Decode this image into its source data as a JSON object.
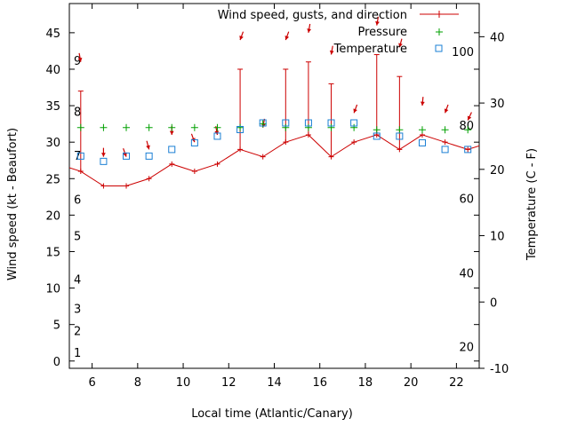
{
  "chart_data": {
    "type": "line",
    "title": "",
    "xlabel": "Local time (Atlantic/Canary)",
    "ylabel": "Wind speed (kt - Beaufort)",
    "y2label": "Temperature (C - F)",
    "xlim": [
      5,
      23
    ],
    "ylim": [
      -1,
      49
    ],
    "y2lim": [
      -10,
      45
    ],
    "xticks": [
      6,
      8,
      10,
      12,
      14,
      16,
      18,
      20,
      22
    ],
    "yticks": [
      0,
      5,
      10,
      15,
      20,
      25,
      30,
      35,
      40,
      45
    ],
    "y2ticks": [
      -10,
      0,
      10,
      20,
      30,
      40
    ],
    "beaufort_labels": [
      {
        "label": "1",
        "y": 1.2
      },
      {
        "label": "2",
        "y": 4.2
      },
      {
        "label": "3",
        "y": 7.2
      },
      {
        "label": "4",
        "y": 11.2
      },
      {
        "label": "5",
        "y": 17.2
      },
      {
        "label": "6",
        "y": 22.2
      },
      {
        "label": "7",
        "y": 28.2
      },
      {
        "label": "8",
        "y": 34.2
      },
      {
        "label": "9",
        "y": 41.2
      }
    ],
    "fahrenheit_labels": [
      {
        "label": "20",
        "y": -6.7
      },
      {
        "label": "40",
        "y": 4.4
      },
      {
        "label": "60",
        "y": 15.6
      },
      {
        "label": "80",
        "y": 26.7
      },
      {
        "label": "100",
        "y": 37.8
      }
    ],
    "legend": [
      "Wind speed, gusts, and direction",
      "Pressure",
      "Temperature"
    ],
    "legend_position": "top-right",
    "colors": {
      "wind": "#cc0000",
      "pressure": "#00a000",
      "temperature": "#1a7fd4",
      "direction": "#cc0000"
    },
    "wind": {
      "x": [
        5,
        5.5,
        6.5,
        7.5,
        8.5,
        9.5,
        10.5,
        11.5,
        12.5,
        13.5,
        14.5,
        15.5,
        16.5,
        17.5,
        18.5,
        19.5,
        20.5,
        21.5,
        22.5,
        23
      ],
      "y": [
        26.5,
        26,
        24,
        24,
        25,
        27,
        26,
        27,
        29,
        28,
        30,
        31,
        28,
        30,
        31,
        29,
        31,
        30,
        29,
        29.5
      ]
    },
    "gusts": {
      "x": [
        5.5,
        12.5,
        14.5,
        15.5,
        16.5,
        18.5,
        19.5
      ],
      "low": [
        26,
        29,
        30,
        31,
        28,
        31,
        29
      ],
      "high": [
        37,
        40,
        40,
        41,
        38,
        42,
        39
      ]
    },
    "direction_arrows": [
      {
        "x": 5.5,
        "y": 41,
        "angle": 190
      },
      {
        "x": 6.5,
        "y": 28,
        "angle": 180
      },
      {
        "x": 7.5,
        "y": 28,
        "angle": 200
      },
      {
        "x": 8.5,
        "y": 29,
        "angle": 195
      },
      {
        "x": 9.5,
        "y": 31,
        "angle": 180
      },
      {
        "x": 10.5,
        "y": 30,
        "angle": 200
      },
      {
        "x": 11.5,
        "y": 31,
        "angle": 190
      },
      {
        "x": 12.5,
        "y": 44,
        "angle": 160
      },
      {
        "x": 13.5,
        "y": 32,
        "angle": 170
      },
      {
        "x": 14.5,
        "y": 44,
        "angle": 160
      },
      {
        "x": 15.5,
        "y": 45,
        "angle": 170
      },
      {
        "x": 16.5,
        "y": 42,
        "angle": 170
      },
      {
        "x": 17.5,
        "y": 34,
        "angle": 160
      },
      {
        "x": 18.5,
        "y": 46,
        "angle": 170
      },
      {
        "x": 19.5,
        "y": 43,
        "angle": 165
      },
      {
        "x": 20.5,
        "y": 35,
        "angle": 175
      },
      {
        "x": 21.5,
        "y": 34,
        "angle": 160
      },
      {
        "x": 22.5,
        "y": 33,
        "angle": 155
      }
    ],
    "pressure": {
      "x": [
        5.5,
        6.5,
        7.5,
        8.5,
        9.5,
        10.5,
        11.5,
        12.5,
        13.5,
        14.5,
        15.5,
        16.5,
        17.5,
        18.5,
        19.5,
        20.5,
        21.5,
        22.5
      ],
      "y": [
        32,
        32,
        32,
        32,
        32,
        32,
        32,
        32,
        32.5,
        32,
        32,
        32,
        32,
        31.7,
        31.7,
        31.7,
        31.7,
        31.7
      ]
    },
    "temperature": {
      "x": [
        5.5,
        6.5,
        7.5,
        8.5,
        9.5,
        10.5,
        11.5,
        12.5,
        13.5,
        14.5,
        15.5,
        16.5,
        17.5,
        18.5,
        19.5,
        20.5,
        21.5,
        22.5
      ],
      "y": [
        22,
        21.2,
        22,
        22,
        23,
        24,
        25,
        26,
        27,
        27,
        27,
        27,
        27,
        25,
        25,
        24,
        23,
        23
      ]
    }
  }
}
